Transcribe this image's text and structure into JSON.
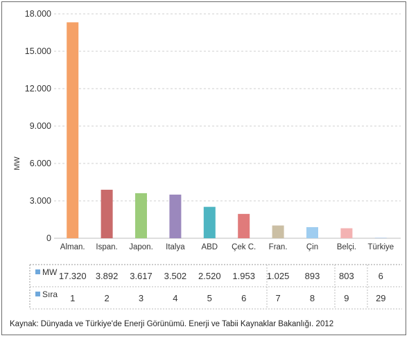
{
  "chart_data": {
    "type": "bar",
    "ylabel": "MW",
    "ylim": [
      0,
      18000
    ],
    "yticks": [
      "18.000",
      "15.000",
      "12.000",
      "9.000",
      "6.000",
      "3.000",
      "0"
    ],
    "ytick_values": [
      18000,
      15000,
      12000,
      9000,
      6000,
      3000,
      0
    ],
    "categories": [
      "Alman.",
      "Ispan.",
      "Japon.",
      "Italya",
      "ABD",
      "Çek C.",
      "Fran.",
      "Çin",
      "Belçi.",
      "Türkiye"
    ],
    "values": [
      17320,
      3892,
      3617,
      3502,
      2520,
      1953,
      1025,
      893,
      803,
      6
    ],
    "bar_colors": [
      "#f5a167",
      "#c96a6a",
      "#9ccc7a",
      "#9b88bd",
      "#4eb5c2",
      "#e07b7b",
      "#cbbfa4",
      "#9fcdf0",
      "#f3b2b2",
      "#7fa6d6"
    ],
    "grid": true,
    "legend": "none"
  },
  "table": {
    "rows": [
      {
        "label": "MW",
        "color": "#6fa8dc",
        "cells": [
          "17.320",
          "3.892",
          "3.617",
          "3.502",
          "2.520",
          "1.953",
          "1.025",
          "893",
          "803",
          "6"
        ]
      },
      {
        "label": "Sıra",
        "color": "#6fa8dc",
        "cells": [
          "1",
          "2",
          "3",
          "4",
          "5",
          "6",
          "7",
          "8",
          "9",
          "29"
        ]
      }
    ]
  },
  "source": "Kaynak: Dünyada ve Türkiye'de Enerji Görünümü. Enerji ve Tabii Kaynaklar Bakanlığı. 2012"
}
